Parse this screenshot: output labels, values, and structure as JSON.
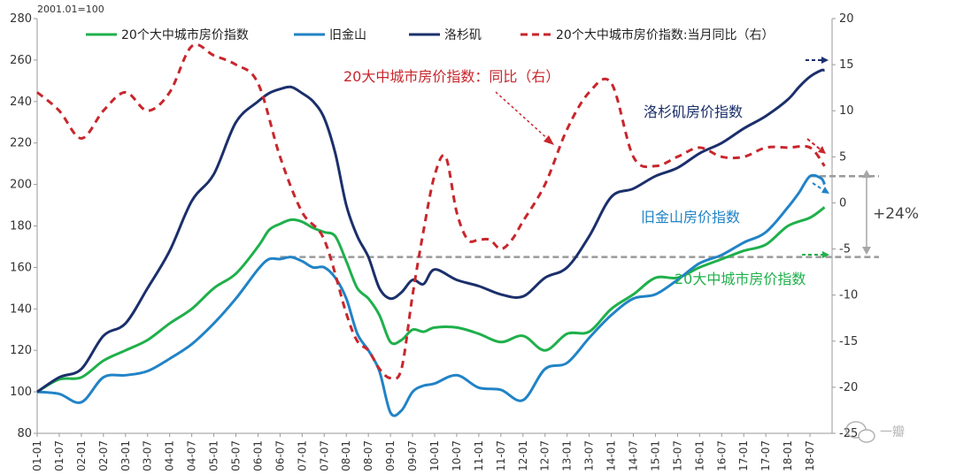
{
  "chart_data": {
    "type": "line",
    "unit_label": "2001.01=100",
    "left_axis": {
      "ylim": [
        80,
        280
      ],
      "ticks": [
        80,
        100,
        120,
        140,
        160,
        180,
        200,
        220,
        240,
        260,
        280
      ]
    },
    "right_axis": {
      "ylim": [
        -25,
        20
      ],
      "ticks": [
        -25,
        -20,
        -15,
        -10,
        -5,
        0,
        5,
        10,
        15,
        20
      ]
    },
    "x_range": [
      2001.0,
      2019.0
    ],
    "x_ticks": [
      "01-01",
      "01-07",
      "02-01",
      "02-07",
      "03-01",
      "03-07",
      "04-01",
      "04-07",
      "05-01",
      "05-07",
      "06-01",
      "06-07",
      "07-01",
      "07-07",
      "08-01",
      "08-07",
      "09-01",
      "09-07",
      "10-01",
      "10-07",
      "11-01",
      "11-07",
      "12-01",
      "12-07",
      "13-01",
      "13-07",
      "14-01",
      "14-07",
      "15-01",
      "15-07",
      "16-01",
      "16-07",
      "17-01",
      "17-07",
      "18-01",
      "18-07"
    ],
    "series": [
      {
        "name": "20个大中城市房价指数",
        "axis": "left",
        "color": "#1fb04b",
        "dash": false,
        "x": [
          2001.0,
          2001.5,
          2002.0,
          2002.5,
          2003.0,
          2003.5,
          2004.0,
          2004.5,
          2005.0,
          2005.5,
          2006.0,
          2006.25,
          2006.5,
          2006.75,
          2007.0,
          2007.25,
          2007.5,
          2007.75,
          2008.0,
          2008.25,
          2008.5,
          2008.75,
          2009.0,
          2009.25,
          2009.5,
          2009.75,
          2010.0,
          2010.5,
          2011.0,
          2011.5,
          2012.0,
          2012.5,
          2013.0,
          2013.5,
          2014.0,
          2014.5,
          2015.0,
          2015.5,
          2016.0,
          2016.5,
          2017.0,
          2017.5,
          2018.0,
          2018.5,
          2018.83
        ],
        "values": [
          100,
          106,
          107,
          115,
          120,
          125,
          133,
          140,
          150,
          157,
          170,
          178,
          181,
          183,
          182,
          179,
          177,
          175,
          163,
          150,
          145,
          137,
          124,
          125,
          130,
          129,
          131,
          131,
          128,
          124,
          127,
          120,
          128,
          129,
          140,
          147,
          155,
          155,
          160,
          164,
          168,
          171,
          180,
          184,
          189
        ]
      },
      {
        "name": "旧金山",
        "axis": "left",
        "color": "#2183c6",
        "dash": false,
        "x": [
          2001.0,
          2001.5,
          2002.0,
          2002.5,
          2003.0,
          2003.5,
          2004.0,
          2004.5,
          2005.0,
          2005.5,
          2006.0,
          2006.25,
          2006.5,
          2006.75,
          2007.0,
          2007.25,
          2007.5,
          2007.75,
          2008.0,
          2008.25,
          2008.5,
          2008.75,
          2009.0,
          2009.25,
          2009.5,
          2009.75,
          2010.0,
          2010.5,
          2011.0,
          2011.5,
          2012.0,
          2012.5,
          2013.0,
          2013.5,
          2014.0,
          2014.5,
          2015.0,
          2015.5,
          2016.0,
          2016.5,
          2017.0,
          2017.5,
          2018.0,
          2018.25,
          2018.5,
          2018.75,
          2018.83
        ],
        "values": [
          100,
          99,
          95,
          107,
          108,
          110,
          116,
          123,
          133,
          145,
          159,
          164,
          164,
          165,
          163,
          160,
          160,
          155,
          145,
          128,
          120,
          110,
          90,
          91,
          100,
          103,
          104,
          108,
          102,
          101,
          96,
          111,
          114,
          126,
          137,
          145,
          147,
          154,
          162,
          166,
          172,
          177,
          189,
          196,
          204,
          203,
          200
        ]
      },
      {
        "name": "洛杉矶",
        "axis": "left",
        "color": "#1b2f6b",
        "dash": false,
        "x": [
          2001.0,
          2001.5,
          2002.0,
          2002.5,
          2003.0,
          2003.5,
          2004.0,
          2004.5,
          2005.0,
          2005.5,
          2006.0,
          2006.25,
          2006.5,
          2006.75,
          2007.0,
          2007.25,
          2007.5,
          2007.75,
          2008.0,
          2008.25,
          2008.5,
          2008.75,
          2009.0,
          2009.25,
          2009.5,
          2009.75,
          2010.0,
          2010.5,
          2011.0,
          2011.5,
          2012.0,
          2012.5,
          2013.0,
          2013.5,
          2014.0,
          2014.5,
          2015.0,
          2015.5,
          2016.0,
          2016.5,
          2017.0,
          2017.5,
          2018.0,
          2018.25,
          2018.5,
          2018.75,
          2018.83
        ],
        "values": [
          100,
          107,
          111,
          127,
          133,
          150,
          168,
          192,
          205,
          230,
          240,
          244,
          246,
          247,
          244,
          240,
          232,
          215,
          190,
          175,
          165,
          150,
          145,
          148,
          154,
          152,
          159,
          154,
          151,
          147,
          146,
          155,
          160,
          175,
          194,
          198,
          204,
          208,
          215,
          220,
          227,
          233,
          241,
          247,
          252,
          255,
          255
        ]
      },
      {
        "name": "20个大中城市房价指数:当月同比（右）",
        "axis": "right",
        "color": "#c8262c",
        "dash": true,
        "x": [
          2001.0,
          2001.5,
          2002.0,
          2002.5,
          2003.0,
          2003.5,
          2004.0,
          2004.5,
          2005.0,
          2005.5,
          2006.0,
          2006.5,
          2007.0,
          2007.5,
          2008.0,
          2008.25,
          2008.5,
          2008.75,
          2009.0,
          2009.25,
          2009.5,
          2009.75,
          2010.0,
          2010.25,
          2010.5,
          2010.75,
          2011.0,
          2011.25,
          2011.5,
          2011.75,
          2012.0,
          2012.5,
          2013.0,
          2013.5,
          2014.0,
          2014.5,
          2015.0,
          2015.5,
          2016.0,
          2016.5,
          2017.0,
          2017.5,
          2018.0,
          2018.5,
          2018.83
        ],
        "values": [
          12,
          10,
          7,
          10,
          12,
          10,
          12,
          17,
          16,
          15,
          13,
          5,
          -1,
          -4,
          -12,
          -15,
          -16,
          -18,
          -19,
          -18,
          -10,
          -3,
          3,
          5,
          -1,
          -4,
          -4,
          -4,
          -5,
          -4,
          -2,
          2,
          8,
          12,
          13,
          5,
          4,
          5,
          6,
          5,
          5,
          6,
          6,
          6,
          4
        ]
      }
    ],
    "annotations": {
      "composite_label": "20大中城市房价指数：同比（右）",
      "la_label": "洛杉矶房价指数",
      "sf_label": "旧金山房价指数",
      "composite_index_label": "20大中城市房价指数",
      "change_label": "+24%",
      "ref_low": 165,
      "ref_high": 204
    }
  },
  "watermark": "一瓣"
}
